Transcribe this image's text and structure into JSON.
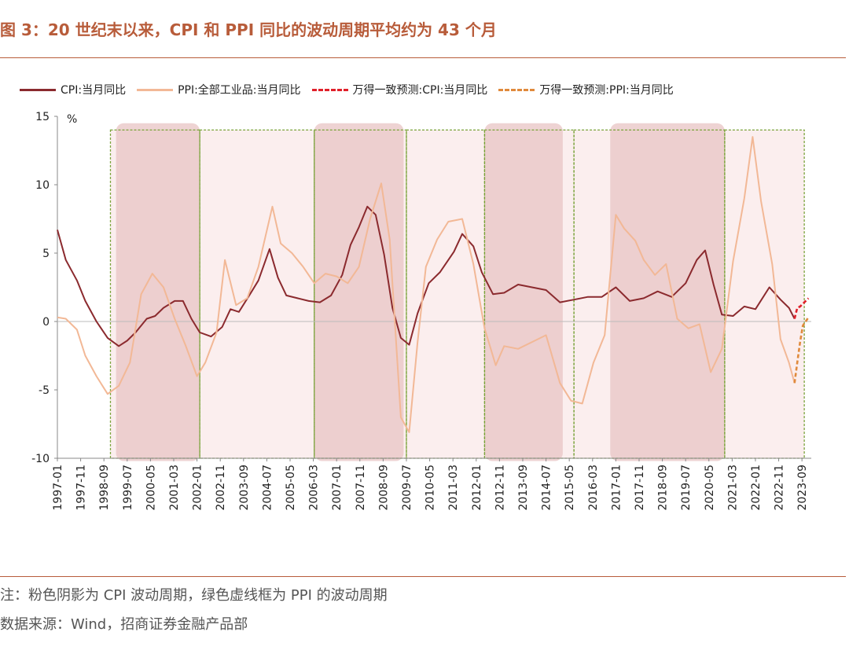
{
  "title": "图 3：20 世纪末以来，CPI 和 PPI 同比的波动周期平均约为 43 个月",
  "note": "注：粉色阴影为 CPI 波动周期，绿色虚线框为 PPI 的波动周期",
  "source": "数据来源：Wind，招商证券金融产品部",
  "colors": {
    "cpi": "#8b2a2e",
    "ppi": "#f2b896",
    "cpi_forecast": "#e0202a",
    "ppi_forecast": "#e08a3c",
    "shade": "#e8c4c4",
    "green": "#7aa33a",
    "accent": "#b85c3a"
  },
  "chart_data": {
    "type": "line",
    "unit": "%",
    "ylim": [
      -10,
      15
    ],
    "yticks": [
      -10,
      -5,
      0,
      5,
      10,
      15
    ],
    "ytick_labels": [
      "-10",
      "-5",
      "0",
      "5",
      "10",
      "15"
    ],
    "xlim": [
      1997.0,
      2024.0
    ],
    "xtick_labels": [
      "1997-01",
      "1997-11",
      "1998-09",
      "1999-07",
      "2000-05",
      "2001-03",
      "2002-01",
      "2002-11",
      "2003-09",
      "2004-07",
      "2005-05",
      "2006-03",
      "2007-01",
      "2007-11",
      "2008-09",
      "2009-07",
      "2010-05",
      "2011-03",
      "2012-01",
      "2012-11",
      "2013-09",
      "2014-07",
      "2015-05",
      "2016-03",
      "2017-01",
      "2017-11",
      "2018-09",
      "2019-07",
      "2020-05",
      "2021-03",
      "2022-01",
      "2022-11",
      "2023-09"
    ],
    "cpi_cycles": [
      [
        1999.1,
        2002.1
      ],
      [
        2006.2,
        2009.4
      ],
      [
        2012.3,
        2015.1
      ],
      [
        2016.8,
        2020.9
      ]
    ],
    "ppi_cycles": [
      [
        1998.9,
        2002.1
      ],
      [
        2002.1,
        2006.2
      ],
      [
        2006.2,
        2009.5
      ],
      [
        2009.5,
        2012.3
      ],
      [
        2012.3,
        2015.5
      ],
      [
        2015.5,
        2020.9
      ],
      [
        2020.9,
        2023.75
      ]
    ],
    "series": [
      {
        "name": "CPI:当月同比",
        "style": "solid",
        "color": "#8b2a2e",
        "x": [
          1997.0,
          1997.3,
          1997.7,
          1998.0,
          1998.4,
          1998.8,
          1999.2,
          1999.5,
          1999.8,
          2000.2,
          2000.5,
          2000.8,
          2001.2,
          2001.5,
          2001.8,
          2002.1,
          2002.5,
          2002.9,
          2003.2,
          2003.5,
          2003.9,
          2004.2,
          2004.6,
          2004.9,
          2005.2,
          2005.6,
          2006.0,
          2006.4,
          2006.8,
          2007.2,
          2007.5,
          2007.8,
          2008.1,
          2008.4,
          2008.7,
          2009.0,
          2009.3,
          2009.6,
          2009.9,
          2010.3,
          2010.7,
          2011.2,
          2011.5,
          2011.9,
          2012.2,
          2012.6,
          2013.0,
          2013.5,
          2014.0,
          2014.5,
          2015.0,
          2015.5,
          2016.0,
          2016.5,
          2017.0,
          2017.5,
          2018.0,
          2018.5,
          2019.0,
          2019.5,
          2019.9,
          2020.2,
          2020.5,
          2020.8,
          2021.2,
          2021.6,
          2022.0,
          2022.5,
          2022.9,
          2023.2,
          2023.4
        ],
        "y": [
          6.7,
          4.5,
          3.0,
          1.5,
          0.0,
          -1.2,
          -1.8,
          -1.4,
          -0.8,
          0.2,
          0.4,
          1.0,
          1.5,
          1.5,
          0.2,
          -0.8,
          -1.1,
          -0.4,
          0.9,
          0.7,
          2.0,
          3.0,
          5.3,
          3.2,
          1.9,
          1.7,
          1.5,
          1.4,
          1.9,
          3.4,
          5.6,
          6.9,
          8.4,
          7.8,
          4.9,
          1.0,
          -1.2,
          -1.7,
          0.6,
          2.8,
          3.6,
          5.1,
          6.4,
          5.5,
          3.6,
          2.0,
          2.1,
          2.7,
          2.5,
          2.3,
          1.4,
          1.6,
          1.8,
          1.8,
          2.5,
          1.5,
          1.7,
          2.2,
          1.8,
          2.8,
          4.5,
          5.2,
          2.7,
          0.5,
          0.4,
          1.1,
          0.9,
          2.5,
          1.6,
          1.0,
          0.2
        ]
      },
      {
        "name": "PPI:全部工业品:当月同比",
        "style": "solid",
        "color": "#f2b896",
        "x": [
          1997.0,
          1997.3,
          1997.7,
          1998.0,
          1998.4,
          1998.8,
          1999.2,
          1999.6,
          2000.0,
          2000.4,
          2000.8,
          2001.2,
          2001.6,
          2002.0,
          2002.3,
          2002.7,
          2003.0,
          2003.4,
          2003.8,
          2004.2,
          2004.7,
          2005.0,
          2005.4,
          2005.8,
          2006.2,
          2006.6,
          2007.0,
          2007.4,
          2007.8,
          2008.2,
          2008.6,
          2008.9,
          2009.3,
          2009.6,
          2009.9,
          2010.2,
          2010.6,
          2011.0,
          2011.5,
          2011.9,
          2012.3,
          2012.7,
          2013.0,
          2013.5,
          2014.0,
          2014.5,
          2015.0,
          2015.4,
          2015.8,
          2016.2,
          2016.6,
          2017.0,
          2017.3,
          2017.7,
          2018.0,
          2018.4,
          2018.8,
          2019.2,
          2019.6,
          2020.0,
          2020.4,
          2020.8,
          2021.2,
          2021.6,
          2021.9,
          2022.2,
          2022.6,
          2022.9,
          2023.2,
          2023.4
        ],
        "y": [
          0.3,
          0.2,
          -0.6,
          -2.5,
          -4.0,
          -5.3,
          -4.7,
          -3.0,
          2.0,
          3.5,
          2.5,
          0.2,
          -1.8,
          -4.0,
          -3.0,
          -0.8,
          4.5,
          1.2,
          1.7,
          4.0,
          8.4,
          5.7,
          5.0,
          4.0,
          2.8,
          3.5,
          3.3,
          2.8,
          4.0,
          7.5,
          10.1,
          6.0,
          -7.0,
          -8.1,
          -1.5,
          4.0,
          6.0,
          7.3,
          7.5,
          4.2,
          -0.5,
          -3.2,
          -1.8,
          -2.0,
          -1.5,
          -1.0,
          -4.5,
          -5.8,
          -6.0,
          -3.0,
          -1.0,
          7.8,
          6.8,
          5.9,
          4.5,
          3.4,
          4.2,
          0.2,
          -0.5,
          -0.2,
          -3.7,
          -2.0,
          4.4,
          9.0,
          13.5,
          8.8,
          4.2,
          -1.3,
          -3.0,
          -4.5
        ]
      },
      {
        "name": "万得一致预测:CPI:当月同比",
        "style": "dashed",
        "color": "#e0202a",
        "x": [
          2023.4,
          2023.5,
          2023.6,
          2023.7,
          2023.8,
          2023.9
        ],
        "y": [
          0.2,
          1.0,
          1.1,
          1.3,
          1.5,
          1.7
        ]
      },
      {
        "name": "万得一致预测:PPI:当月同比",
        "style": "dashed",
        "color": "#e08a3c",
        "x": [
          2023.4,
          2023.5,
          2023.6,
          2023.7,
          2023.8,
          2023.9
        ],
        "y": [
          -4.5,
          -3.0,
          -1.5,
          -0.3,
          0.0,
          0.3
        ]
      }
    ]
  }
}
